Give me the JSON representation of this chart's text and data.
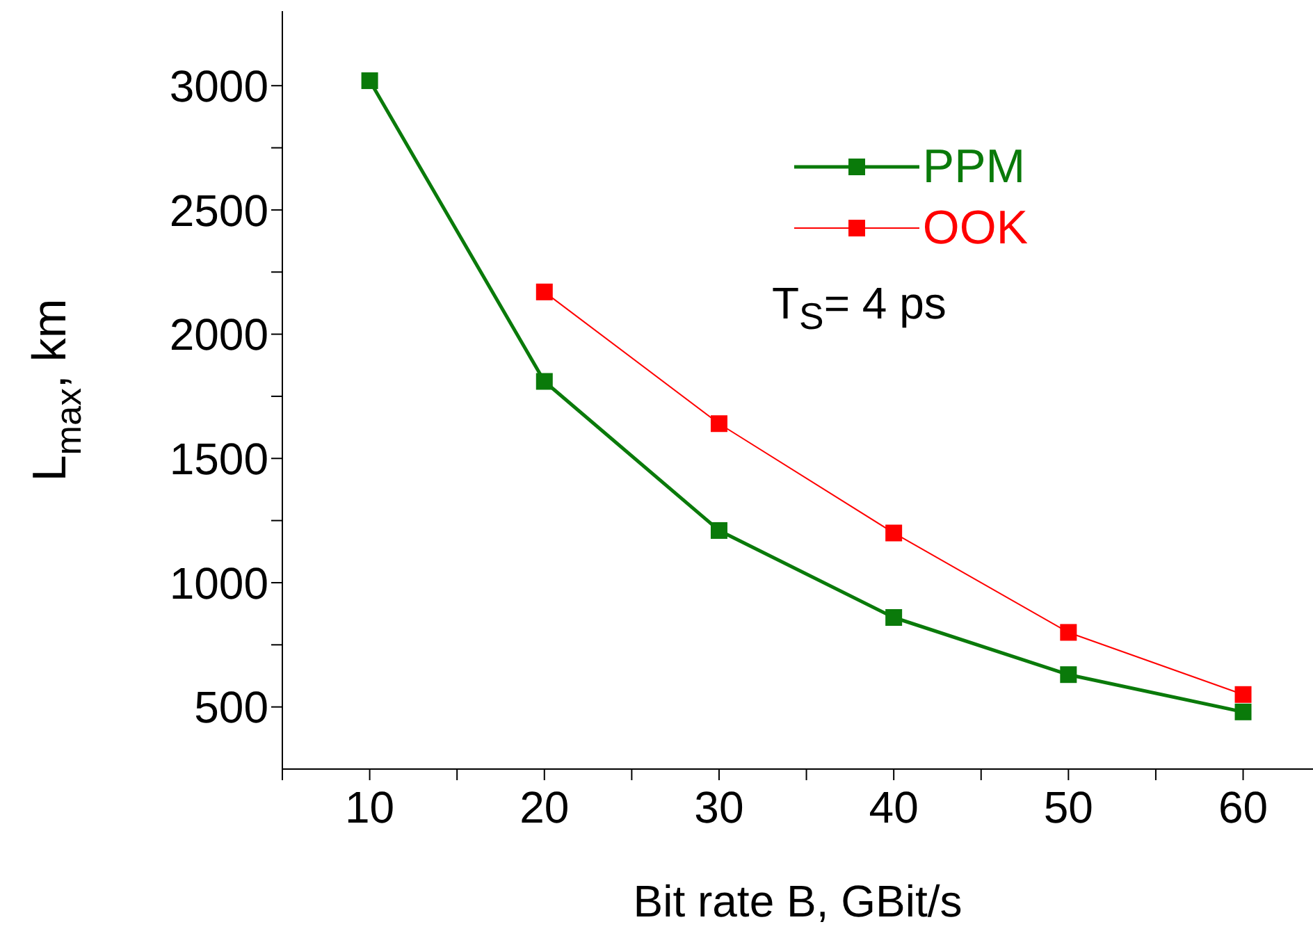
{
  "chart_data": {
    "type": "line",
    "xlabel": "Bit rate B, GBit/s",
    "ylabel": "L$_{max}$, km",
    "x": [
      10,
      20,
      30,
      40,
      50,
      60
    ],
    "series": [
      {
        "name": "PPM",
        "color": "#0a7a0a",
        "values": [
          3020,
          1810,
          1210,
          860,
          630,
          480
        ]
      },
      {
        "name": "OOK",
        "color": "#ff0000",
        "values": [
          null,
          2170,
          1640,
          1200,
          800,
          550
        ]
      }
    ],
    "xlim": [
      5,
      64
    ],
    "xticks": [
      {
        "value": 5,
        "label": null
      },
      10,
      {
        "value": 15,
        "label": null
      },
      20,
      {
        "value": 25,
        "label": null
      },
      30,
      {
        "value": 35,
        "label": null
      },
      40,
      {
        "value": 45,
        "label": null
      },
      50,
      {
        "value": 55,
        "label": null
      },
      60
    ],
    "ylim": [
      250,
      3300
    ],
    "yticks": [
      500,
      {
        "value": 750,
        "label": null
      },
      1000,
      {
        "value": 1250,
        "label": null
      },
      1500,
      {
        "value": 1750,
        "label": null
      },
      2000,
      {
        "value": 2250,
        "label": null
      },
      2500,
      {
        "value": 2750,
        "label": null
      },
      3000
    ],
    "annotations": [
      "T$_{S}$= 4 ps"
    ],
    "marker": "square",
    "grid": false,
    "legend": "top right"
  }
}
